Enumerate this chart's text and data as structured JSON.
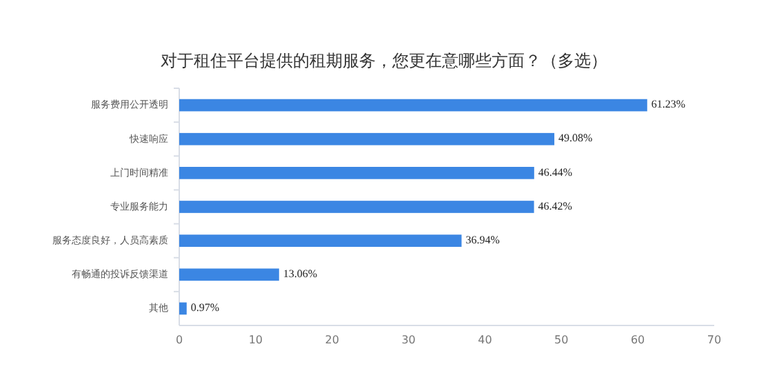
{
  "chart_data": {
    "type": "bar",
    "orientation": "horizontal",
    "title": "对于租住平台提供的租期服务，您更在意哪些方面？（多选）",
    "categories": [
      "服务费用公开透明",
      "快速响应",
      "上门时间精准",
      "专业服务能力",
      "服务态度良好，人员高素质",
      "有畅通的投诉反馈渠道",
      "其他"
    ],
    "values": [
      61.23,
      49.08,
      46.44,
      46.42,
      36.94,
      13.06,
      0.97
    ],
    "value_labels": [
      "61.23%",
      "49.08%",
      "46.44%",
      "46.42%",
      "36.94%",
      "13.06%",
      "0.97%"
    ],
    "color": "#3b86e3",
    "xlim": [
      0,
      70
    ],
    "xticks": [
      0,
      10,
      20,
      30,
      40,
      50,
      60,
      70
    ],
    "grid": false
  }
}
